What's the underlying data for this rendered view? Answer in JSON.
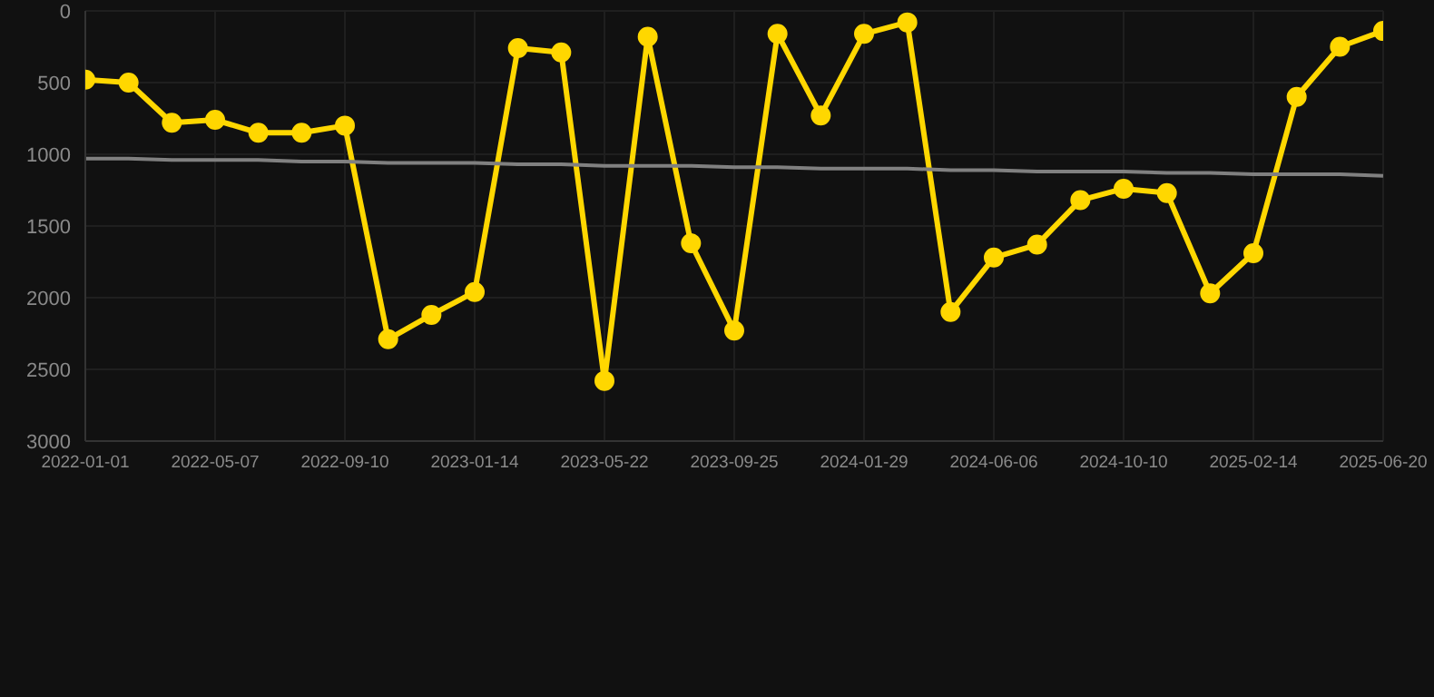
{
  "chart_data": {
    "type": "line",
    "categories": [
      "2022-01-01",
      null,
      null,
      "2022-05-07",
      null,
      null,
      "2022-09-10",
      null,
      null,
      "2023-01-14",
      null,
      null,
      "2023-05-22",
      null,
      null,
      "2023-09-25",
      null,
      null,
      "2024-01-29",
      null,
      null,
      "2024-06-06",
      null,
      null,
      "2024-10-10",
      null,
      null,
      "2025-02-14",
      null,
      null,
      "2025-06-20"
    ],
    "series": [
      {
        "color": "#ffd700",
        "marker": "circle",
        "line_style": "solid",
        "values": [
          480,
          500,
          780,
          760,
          850,
          850,
          800,
          2290,
          2120,
          1960,
          260,
          290,
          2580,
          180,
          1620,
          2230,
          160,
          730,
          160,
          80,
          2100,
          1720,
          1630,
          1320,
          1240,
          1270,
          1970,
          1690,
          600,
          250,
          140
        ]
      },
      {
        "type": "line",
        "color": "#808080",
        "marker": "none",
        "line_style": "solid",
        "values": [
          1030,
          1030,
          1040,
          1040,
          1040,
          1050,
          1050,
          1060,
          1060,
          1060,
          1070,
          1070,
          1080,
          1080,
          1080,
          1090,
          1090,
          1100,
          1100,
          1100,
          1110,
          1110,
          1120,
          1120,
          1120,
          1130,
          1130,
          1140,
          1140,
          1140,
          1150
        ]
      }
    ],
    "ylim": [
      3000,
      0
    ],
    "yticks": [
      0,
      500,
      1000,
      1500,
      2000,
      2500,
      3000
    ],
    "grid": true
  }
}
